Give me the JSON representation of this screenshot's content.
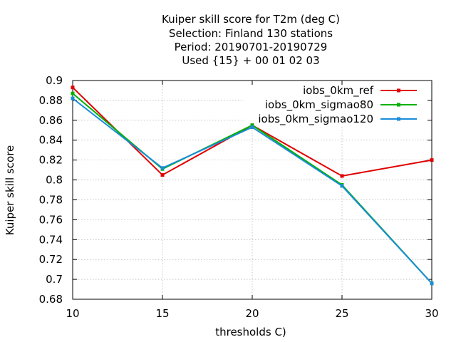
{
  "chart_data": {
    "type": "line",
    "title_lines": [
      "Kuiper skill score  for T2m (deg C)",
      "Selection: Finland     130 stations",
      "Period: 20190701-20190729",
      "Used {15} + 00 01 02 03"
    ],
    "xlabel": "thresholds C)",
    "ylabel": "Kuiper skill score",
    "x": [
      10,
      15,
      20,
      25,
      30
    ],
    "xlim": [
      10,
      30
    ],
    "ylim": [
      0.68,
      0.9
    ],
    "x_ticks": [
      "10",
      "15",
      "20",
      "25",
      "30"
    ],
    "y_ticks": [
      "0.68",
      "0.7",
      "0.72",
      "0.74",
      "0.76",
      "0.78",
      "0.8",
      "0.82",
      "0.84",
      "0.86",
      "0.88",
      "0.9"
    ],
    "grid": true,
    "legend_position": "top-right",
    "series": [
      {
        "name": "iobs_0km_ref",
        "color": "#e00000",
        "values": [
          0.893,
          0.805,
          0.855,
          0.804,
          0.82
        ]
      },
      {
        "name": "iobs_0km_sigmao80",
        "color": "#00b000",
        "values": [
          0.887,
          0.811,
          0.855,
          0.795,
          0.696
        ]
      },
      {
        "name": "iobs_0km_sigmao120",
        "color": "#1a8cd8",
        "values": [
          0.882,
          0.812,
          0.853,
          0.794,
          0.696
        ]
      }
    ]
  }
}
